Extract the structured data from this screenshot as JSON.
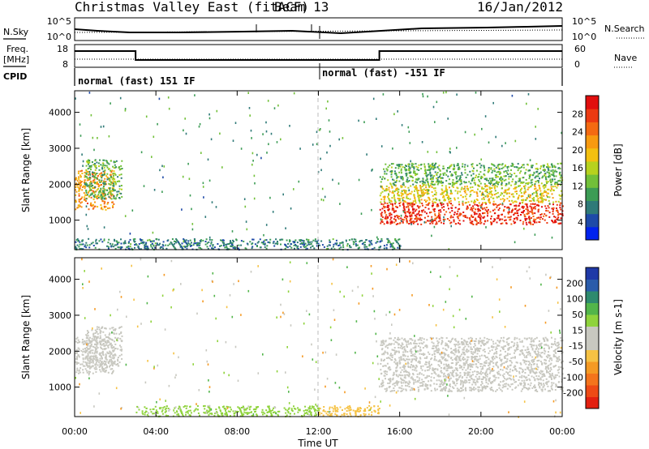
{
  "header": {
    "title": "Christmas Valley East (fitACF)",
    "beam": "Beam 13",
    "date": "16/Jan/2012"
  },
  "top_panels": {
    "nsky_label": "N.Sky",
    "nsearch_label": "N.Search",
    "nsky_ticks": [
      "10^5",
      "10^0"
    ],
    "nsearch_ticks": [
      "10^5",
      "10^0"
    ],
    "freq_label_1": "Freq.",
    "freq_label_2": "[MHz]",
    "freq_ticks": [
      "18",
      "8"
    ],
    "nave_label": "Nave",
    "nave_ticks": [
      "60",
      "0"
    ],
    "cpid_label": "CPID",
    "cpid_segments": [
      {
        "label": "normal (fast) 151 IF",
        "start_hour": 0,
        "end_hour": 12
      },
      {
        "label": "normal (fast) -151 IF",
        "start_hour": 12,
        "end_hour": 24
      }
    ],
    "freq_steps": [
      {
        "start_hour": 0,
        "end_hour": 3,
        "level": "high"
      },
      {
        "start_hour": 3,
        "end_hour": 15,
        "level": "low"
      },
      {
        "start_hour": 15,
        "end_hour": 24,
        "level": "high"
      }
    ]
  },
  "colorbars": {
    "power": {
      "label": "Power [dB]",
      "ticks": [
        "4",
        "8",
        "12",
        "16",
        "20",
        "24",
        "28"
      ],
      "colors": [
        "#0022ee",
        "#1e4aa8",
        "#2f7a78",
        "#3c9c55",
        "#72c039",
        "#b7d21e",
        "#f3c010",
        "#f89a10",
        "#f46a12",
        "#ec3a12",
        "#e10e0e"
      ]
    },
    "velocity": {
      "label": "Velocity [m s-1]",
      "ticks": [
        "200",
        "100",
        "50",
        "15",
        "-15",
        "-50",
        "-100",
        "-200"
      ],
      "colors": [
        "#1f39a7",
        "#2a5caa",
        "#2e8a6e",
        "#52b54a",
        "#8fd33c",
        "#c8c8c0",
        "#c8c8c0",
        "#f6c244",
        "#f59a24",
        "#f4741c",
        "#ee4a15",
        "#e32010"
      ]
    }
  },
  "axes": {
    "y_label": "Slant Range [km]",
    "y_ticks": [
      "1000",
      "2000",
      "3000",
      "4000"
    ],
    "x_ticks": [
      "00:00",
      "04:00",
      "08:00",
      "12:00",
      "16:00",
      "20:00",
      "00:00"
    ],
    "x_label": "Time UT"
  },
  "chart_data": {
    "type": "heatmap",
    "x_range_hours": [
      0,
      24
    ],
    "y_range_km": [
      180,
      4600
    ],
    "power_regions": [
      {
        "t0": 0.0,
        "t1": 1.9,
        "r_lo": 1300,
        "r_hi": 2400,
        "dB": 22
      },
      {
        "t0": 0.5,
        "t1": 2.3,
        "r_lo": 1600,
        "r_hi": 2700,
        "dB": 12
      },
      {
        "t0": 15.0,
        "t1": 24.0,
        "r_lo": 900,
        "r_hi": 1500,
        "dB": 28
      },
      {
        "t0": 15.0,
        "t1": 24.0,
        "r_lo": 1500,
        "r_hi": 2000,
        "dB": 18
      },
      {
        "t0": 15.0,
        "t1": 24.0,
        "r_lo": 2000,
        "r_hi": 2600,
        "dB": 12
      },
      {
        "t0": 0.0,
        "t1": 16.0,
        "r_lo": 200,
        "r_hi": 500,
        "dB": 8
      }
    ],
    "velocity_regions": [
      {
        "t0": 0.0,
        "t1": 1.9,
        "r_lo": 1400,
        "r_hi": 2400,
        "v": 0
      },
      {
        "t0": 0.5,
        "t1": 2.3,
        "r_lo": 1600,
        "r_hi": 2700,
        "v": 0
      },
      {
        "t0": 15.0,
        "t1": 24.0,
        "r_lo": 900,
        "r_hi": 2400,
        "v": 0
      },
      {
        "t0": 3.0,
        "t1": 12.0,
        "r_lo": 200,
        "r_hi": 500,
        "v": 40
      },
      {
        "t0": 12.0,
        "t1": 15.0,
        "r_lo": 200,
        "r_hi": 500,
        "v": -60
      }
    ]
  }
}
